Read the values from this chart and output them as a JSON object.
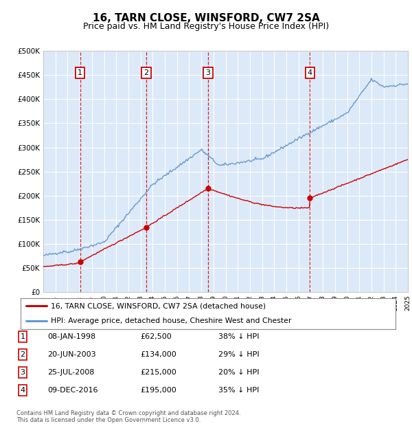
{
  "title": "16, TARN CLOSE, WINSFORD, CW7 2SA",
  "subtitle": "Price paid vs. HM Land Registry's House Price Index (HPI)",
  "footer1": "Contains HM Land Registry data © Crown copyright and database right 2024.",
  "footer2": "This data is licensed under the Open Government Licence v3.0.",
  "legend_red": "16, TARN CLOSE, WINSFORD, CW7 2SA (detached house)",
  "legend_blue": "HPI: Average price, detached house, Cheshire West and Chester",
  "sale_labels": [
    "1",
    "2",
    "3",
    "4"
  ],
  "sale_dates_str": [
    "08-JAN-1998",
    "20-JUN-2003",
    "25-JUL-2008",
    "09-DEC-2016"
  ],
  "sale_prices": [
    62500,
    134000,
    215000,
    195000
  ],
  "sale_hpi_pct": [
    "38% ↓ HPI",
    "29% ↓ HPI",
    "20% ↓ HPI",
    "35% ↓ HPI"
  ],
  "sale_years": [
    1998.04,
    2003.47,
    2008.56,
    2016.94
  ],
  "ylim": [
    0,
    500000
  ],
  "yticks": [
    0,
    50000,
    100000,
    150000,
    200000,
    250000,
    300000,
    350000,
    400000,
    450000,
    500000
  ],
  "background_color": "#dce9f8",
  "grid_color": "#ffffff",
  "red_color": "#cc0000",
  "blue_color": "#6699cc",
  "title_fontsize": 11,
  "subtitle_fontsize": 9
}
